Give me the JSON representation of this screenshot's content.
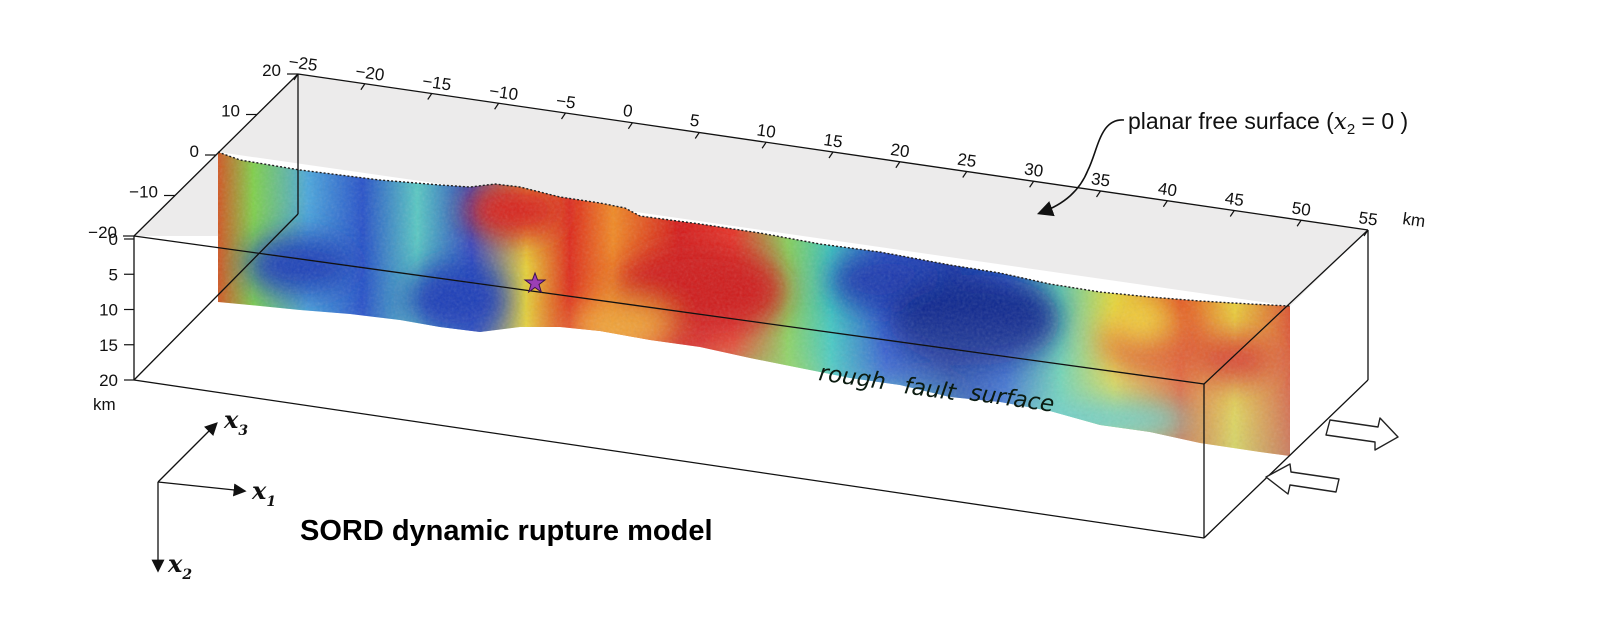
{
  "title": "SORD dynamic rupture model",
  "units": {
    "horizontal": "km",
    "depth": "km"
  },
  "top_axis_ticks": [
    "−25",
    "−20",
    "−15",
    "−10",
    "−5",
    "0",
    "5",
    "10",
    "15",
    "20",
    "25",
    "30",
    "35",
    "40",
    "45",
    "50",
    "55"
  ],
  "left_axis_ticks": [
    "20",
    "10",
    "0",
    "−10",
    "−20"
  ],
  "depth_ticks": [
    "0",
    "5",
    "10",
    "15",
    "20"
  ],
  "annotations": {
    "free_surface_prefix": "planar free surface (",
    "free_surface_var": "x",
    "free_surface_sub": "2",
    "free_surface_suffix": " = 0 )",
    "fault_words": [
      "rough",
      "fault",
      "surface"
    ]
  },
  "coordinate_axes": [
    {
      "var": "x",
      "sub": "3"
    },
    {
      "var": "x",
      "sub": "1"
    },
    {
      "var": "x",
      "sub": "2"
    }
  ],
  "hypocenter_color": "#9b3fb5",
  "colors": {
    "slip_high": "#d81e1e",
    "slip_mid": "#2fbf54",
    "slip_low": "#1d3fbf",
    "surface_gray": "#ecebeb"
  }
}
